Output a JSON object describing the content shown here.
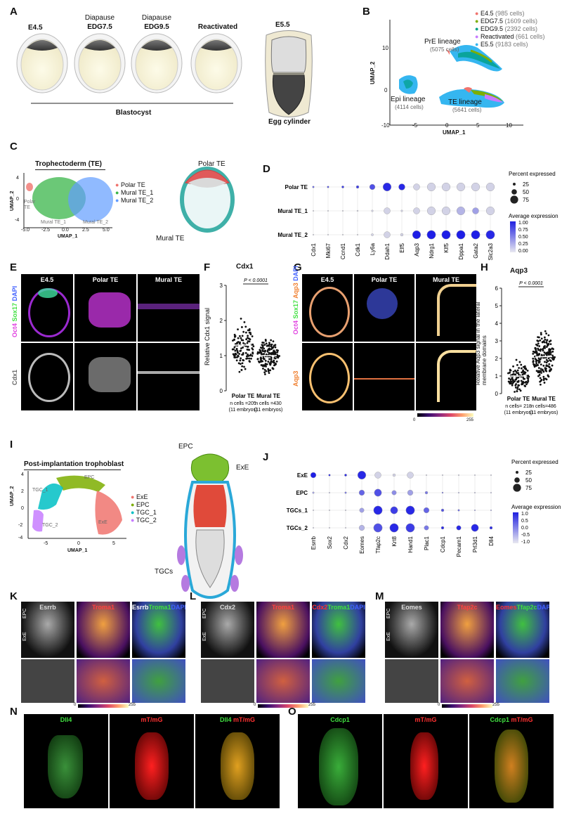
{
  "panels": {
    "A": {
      "letter": "A",
      "stages": [
        "E4.5",
        "Diapause",
        "EDG7.5",
        "Diapause",
        "EDG9.5",
        "Reactivated",
        "E5.5"
      ],
      "blastocyst_label": "Blastocyst",
      "egg_cylinder_label": "Egg cylinder"
    },
    "B": {
      "letter": "B",
      "axis_x": "UMAP_1",
      "axis_y": "UMAP_2",
      "xticks": [
        "-10",
        "-5",
        "0",
        "5",
        "10"
      ],
      "yticks": [
        "10",
        "0"
      ],
      "legend": [
        {
          "name": "E4.5",
          "count": "(985 cells)",
          "color": "#f0746e"
        },
        {
          "name": "EDG7.5",
          "count": "(1609 cells)",
          "color": "#7cae00"
        },
        {
          "name": "EDG9.5",
          "count": "(2392 cells)",
          "color": "#00a087"
        },
        {
          "name": "Reactivated",
          "count": "(661 cells)",
          "color": "#c77cff"
        },
        {
          "name": "E5.5",
          "count": "(9183 cells)",
          "color": "#35b6f0"
        }
      ],
      "clusters": [
        {
          "name": "PrE lineage",
          "count": "(5075 cells)"
        },
        {
          "name": "Epi lineage",
          "count": "(4114 cells)"
        },
        {
          "name": "TE lineage",
          "count": "(5641 cells)"
        }
      ]
    },
    "C": {
      "letter": "C",
      "title": "Trophectoderm (TE)",
      "axis_x": "UMAP_1",
      "axis_y": "UMAP_2",
      "xticks": [
        "-5.0",
        "-2.5",
        "0.0",
        "2.5",
        "5.0"
      ],
      "yticks": [
        "4",
        "0",
        "-4"
      ],
      "legend": [
        {
          "name": "Polar TE",
          "color": "#f0746e"
        },
        {
          "name": "Mural TE_1",
          "color": "#39b54a"
        },
        {
          "name": "Mural TE_2",
          "color": "#619cff"
        }
      ],
      "cluster_labels": [
        "Polar\nTE",
        "Mural TE_1",
        "Mural TE_2"
      ],
      "diagram_labels": [
        "Polar TE",
        "Mural TE"
      ]
    },
    "D": {
      "letter": "D",
      "rows": [
        "Polar TE",
        "Mural TE_1",
        "Mural TE_2"
      ],
      "genes": [
        "Cdx1",
        "Mki67",
        "Ccnd1",
        "Cdk1",
        "Ly6a",
        "Ddah1",
        "Elf5",
        "Aqp3",
        "Ndrg1",
        "Klf5",
        "Dppa1",
        "Gata2",
        "Slc2a3"
      ],
      "size_title": "Percent expressed",
      "size_values": [
        "25",
        "50",
        "75"
      ],
      "color_title": "Average expression",
      "color_values": [
        "1.00",
        "0.75",
        "0.50",
        "0.25",
        "0.00"
      ]
    },
    "E": {
      "letter": "E",
      "columns": [
        "E4.5",
        "Polar TE",
        "Mural TE"
      ],
      "channels": [
        "Oct4",
        "Sox17",
        "DAPI"
      ],
      "channel_colors": [
        "#e040e0",
        "#40e040",
        "#4060ff"
      ],
      "bottom_channel": "Cdx1"
    },
    "F": {
      "letter": "F",
      "title": "Cdx1",
      "ylabel": "Relative Cdx1 signal",
      "yticks": [
        "0",
        "1",
        "2",
        "3"
      ],
      "pvalue": "P < 0.0001",
      "groups": [
        {
          "name": "Polar TE",
          "n": "n cells =205",
          "embryos": "(11 embryos)"
        },
        {
          "name": "Mural TE",
          "n": "n cells =430",
          "embryos": "(11 embryos)"
        }
      ]
    },
    "G": {
      "letter": "G",
      "columns": [
        "E4.5",
        "Polar TE",
        "Mural TE"
      ],
      "channels": [
        "Oct4",
        "Sox17",
        "Aqp3",
        "DAPI"
      ],
      "bottom_channel": "Aqp3",
      "scale_min": "0",
      "scale_max": "255"
    },
    "H": {
      "letter": "H",
      "title": "Aqp3",
      "ylabel": "Relative Aqp3 signal in the lateral membrane domains",
      "yticks": [
        "0",
        "1",
        "2",
        "3",
        "4",
        "5",
        "6"
      ],
      "pvalue": "P < 0.0001",
      "groups": [
        {
          "name": "Polar TE",
          "n": "n cells= 218",
          "embryos": "(11 embryos)"
        },
        {
          "name": "Mural TE",
          "n": "n cells=486",
          "embryos": "(11 embryos)"
        }
      ]
    },
    "I": {
      "letter": "I",
      "title": "Post-implantation trophoblast",
      "axis_x": "UMAP_1",
      "axis_y": "UMAP_2",
      "xticks": [
        "-5",
        "0",
        "5"
      ],
      "yticks": [
        "4",
        "2",
        "0",
        "-2",
        "-4"
      ],
      "legend": [
        {
          "name": "ExE",
          "color": "#f0746e"
        },
        {
          "name": "EPC",
          "color": "#7cae00"
        },
        {
          "name": "TGC_1",
          "color": "#00bfc4"
        },
        {
          "name": "TGC_2",
          "color": "#c77cff"
        }
      ],
      "cluster_labels": [
        "EPC",
        "TGC_1",
        "TGC_2",
        "ExE"
      ],
      "diagram_labels": [
        "EPC",
        "ExE",
        "TGCs"
      ]
    },
    "J": {
      "letter": "J",
      "rows": [
        "ExE",
        "EPC",
        "TGCs_1",
        "TGCs_2"
      ],
      "genes": [
        "Esrrb",
        "Sox2",
        "Cdx2",
        "Eomes",
        "Tfap2c",
        "Krt8",
        "Hand1",
        "Plac1",
        "Cdcp1",
        "Pecam1",
        "Prl3d1",
        "Dll4"
      ],
      "size_title": "Percent expressed",
      "size_values": [
        "25",
        "50",
        "75"
      ],
      "color_title": "Average expression",
      "color_values": [
        "1.0",
        "0.5",
        "0.0",
        "-0.5",
        "-1.0"
      ]
    },
    "K": {
      "letter": "K",
      "col1": "Esrrb",
      "col2": "Troma1",
      "merge": [
        "Esrrb",
        "Troma1",
        "DAPI"
      ],
      "side": [
        "EPC",
        "ExE"
      ],
      "scale_min": "0",
      "scale_max": "255"
    },
    "L": {
      "letter": "L",
      "col1": "Cdx2",
      "col2": "Troma1",
      "merge": [
        "Cdx2",
        "Troma1",
        "DAPI"
      ],
      "side": [
        "EPC",
        "ExE"
      ],
      "scale_min": "0",
      "scale_max": "255"
    },
    "M": {
      "letter": "M",
      "col1": "Eomes",
      "col2": "Tfap2c",
      "merge": [
        "Eomes",
        "Tfap2c",
        "DAPI"
      ],
      "side": [
        "EPC",
        "ExE"
      ],
      "scale_min": "0",
      "scale_max": "255"
    },
    "N": {
      "letter": "N",
      "col1": "Dll4",
      "col2": "mT/mG",
      "merge": [
        "Dll4",
        "mT/mG"
      ]
    },
    "O": {
      "letter": "O",
      "col1": "Cdcp1",
      "col2": "mT/mG",
      "merge": [
        "Cdcp1",
        "mT/mG"
      ]
    }
  }
}
